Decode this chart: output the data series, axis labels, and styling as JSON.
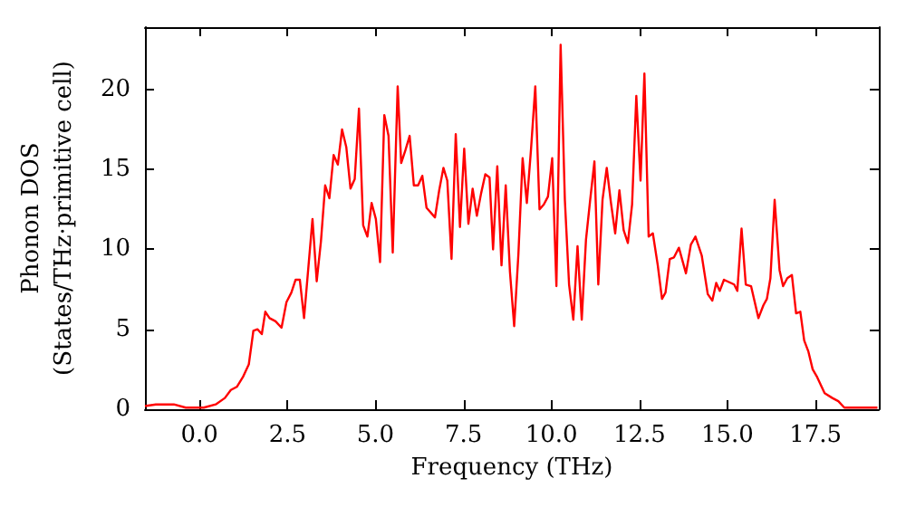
{
  "chart_data": {
    "type": "line",
    "xlabel": "Frequency (THz)",
    "ylabel": "Phonon DOS\n(States/THz·primitive cell)",
    "xlim": [
      -1.55,
      19.3
    ],
    "ylim": [
      0,
      23.9
    ],
    "xticks": [
      {
        "value": 0,
        "label": "0.0"
      },
      {
        "value": 2.5,
        "label": "2.5"
      },
      {
        "value": 5,
        "label": "5.0"
      },
      {
        "value": 7.5,
        "label": "7.5"
      },
      {
        "value": 10,
        "label": "10.0"
      },
      {
        "value": 12.5,
        "label": "12.5"
      },
      {
        "value": 15,
        "label": "15.0"
      },
      {
        "value": 17.5,
        "label": "17.5"
      }
    ],
    "yticks": [
      0,
      5,
      10,
      15,
      20
    ],
    "grid": false,
    "marker": "none",
    "line_style": "solid",
    "series": [
      {
        "color": "#ff0000",
        "x": [
          -1.55,
          -1.24,
          -0.73,
          -0.39,
          0.12,
          0.46,
          0.72,
          0.89,
          1.06,
          1.23,
          1.4,
          1.53,
          1.65,
          1.77,
          1.87,
          1.99,
          2.16,
          2.33,
          2.47,
          2.61,
          2.73,
          2.85,
          2.97,
          3.21,
          3.33,
          3.45,
          3.57,
          3.69,
          3.81,
          3.93,
          4.05,
          4.17,
          4.29,
          4.41,
          4.53,
          4.65,
          4.77,
          4.89,
          5.01,
          5.13,
          5.25,
          5.37,
          5.49,
          5.63,
          5.73,
          5.85,
          5.97,
          6.09,
          6.21,
          6.33,
          6.45,
          6.69,
          6.81,
          6.93,
          7.04,
          7.16,
          7.28,
          7.4,
          7.52,
          7.64,
          7.76,
          7.88,
          8.0,
          8.12,
          8.24,
          8.34,
          8.46,
          8.58,
          8.7,
          8.82,
          8.94,
          9.06,
          9.18,
          9.3,
          9.42,
          9.54,
          9.66,
          9.78,
          9.9,
          10.02,
          10.14,
          10.26,
          10.38,
          10.5,
          10.62,
          10.74,
          10.86,
          10.98,
          11.1,
          11.22,
          11.33,
          11.45,
          11.57,
          11.69,
          11.81,
          11.93,
          12.05,
          12.17,
          12.29,
          12.41,
          12.53,
          12.64,
          12.76,
          12.88,
          13.02,
          13.14,
          13.24,
          13.36,
          13.48,
          13.62,
          13.82,
          13.96,
          14.09,
          14.27,
          14.44,
          14.57,
          14.68,
          14.78,
          14.9,
          15.19,
          15.28,
          15.4,
          15.52,
          15.67,
          15.88,
          16.02,
          16.12,
          16.22,
          16.34,
          16.48,
          16.58,
          16.7,
          16.83,
          16.95,
          17.07,
          17.18,
          17.3,
          17.42,
          17.55,
          17.76,
          17.98,
          18.15,
          18.32,
          19.26
        ],
        "values": [
          0.2,
          0.3,
          0.3,
          0.1,
          0.1,
          0.3,
          0.7,
          1.2,
          1.4,
          2.0,
          2.8,
          4.9,
          5.0,
          4.7,
          6.1,
          5.7,
          5.5,
          5.1,
          6.7,
          7.3,
          8.1,
          8.1,
          5.7,
          11.9,
          8.0,
          10.5,
          14.0,
          13.2,
          15.9,
          15.3,
          17.5,
          16.4,
          13.8,
          14.4,
          18.8,
          11.5,
          10.8,
          12.9,
          11.9,
          9.2,
          18.4,
          17.1,
          9.8,
          20.2,
          15.4,
          16.2,
          17.1,
          14.0,
          14.0,
          14.6,
          12.6,
          12.0,
          13.7,
          15.1,
          14.3,
          9.4,
          17.2,
          11.4,
          16.3,
          11.6,
          13.8,
          12.1,
          13.5,
          14.7,
          14.5,
          10.0,
          15.2,
          9.0,
          14.0,
          8.6,
          5.2,
          9.7,
          15.7,
          12.9,
          16.3,
          20.2,
          12.5,
          12.8,
          13.3,
          15.7,
          7.7,
          22.8,
          13.1,
          7.8,
          5.6,
          10.2,
          5.6,
          10.6,
          13.1,
          15.5,
          7.8,
          13.1,
          15.1,
          12.9,
          11.0,
          13.7,
          11.2,
          10.4,
          12.8,
          19.6,
          14.3,
          21.0,
          10.8,
          11.0,
          9.0,
          6.9,
          7.3,
          9.4,
          9.5,
          10.1,
          8.5,
          10.3,
          10.8,
          9.6,
          7.2,
          6.8,
          7.9,
          7.4,
          8.1,
          7.8,
          7.4,
          11.3,
          7.8,
          7.7,
          5.7,
          6.5,
          6.9,
          8.2,
          13.1,
          8.7,
          7.7,
          8.2,
          8.4,
          6.0,
          6.1,
          4.3,
          3.6,
          2.5,
          2.0,
          1.0,
          0.7,
          0.5,
          0.1,
          0.1
        ]
      }
    ]
  }
}
